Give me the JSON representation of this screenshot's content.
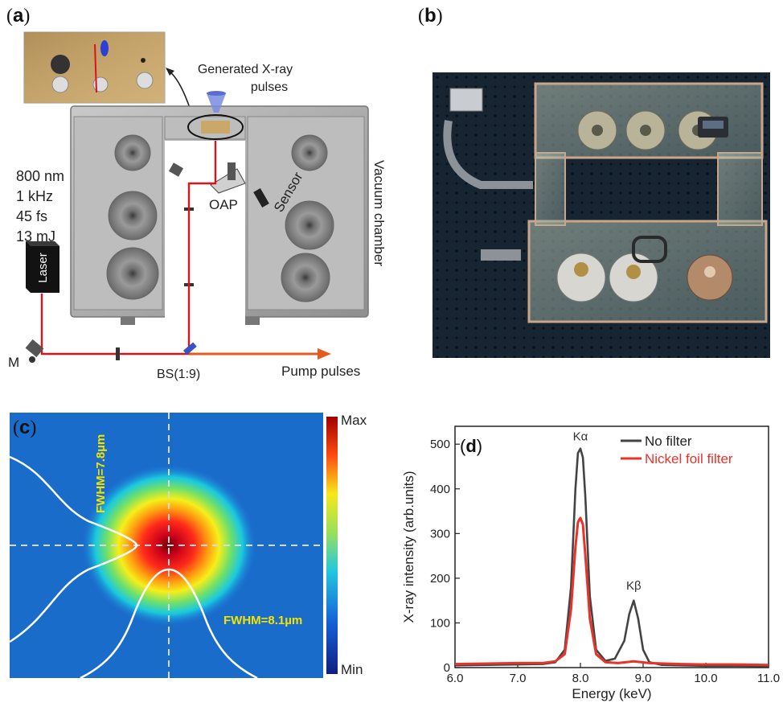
{
  "panels": {
    "a": {
      "label": "a",
      "generated_xray": [
        "Generated X-ray",
        "pulses"
      ],
      "laser_params": [
        "800 nm",
        "1 kHz",
        "45 fs",
        "13 mJ"
      ],
      "laser": "Laser",
      "mirror": "M",
      "beamsplitter": "BS(1:9)",
      "pump_pulses": "Pump pulses",
      "oap": "OAP",
      "sensor": "Sensor",
      "vacuum_chamber": "Vacuum chamber",
      "beam_color": "#d9141b",
      "chamber_color": "#9e9e9e"
    },
    "b": {
      "label": "b"
    },
    "c": {
      "label": "c",
      "colorbar_max": "Max",
      "colorbar_min": "Min",
      "fwhm_vertical": "FWHM=7.8µm",
      "fwhm_horizontal": "FWHM=8.1µm",
      "annotation_color": "#f2e400"
    },
    "d": {
      "label": "d",
      "peak_ka": "Kα",
      "peak_kb": "Kβ"
    }
  },
  "chart_data": {
    "type": "line",
    "xlabel": "Energy (keV)",
    "ylabel": "X-ray intensity (arb.units)",
    "xlim": [
      6.0,
      11.0
    ],
    "ylim": [
      0,
      540
    ],
    "xticks": [
      "6.0",
      "7.0",
      "8.0",
      "9.0",
      "10.0",
      "11.0"
    ],
    "yticks": [
      "0",
      "100",
      "200",
      "300",
      "400",
      "500"
    ],
    "legend_position": "top-right",
    "series": [
      {
        "name": "No filter",
        "color": "#444444",
        "x": [
          6.0,
          6.5,
          7.0,
          7.4,
          7.6,
          7.75,
          7.85,
          7.92,
          7.96,
          8.0,
          8.04,
          8.08,
          8.15,
          8.25,
          8.4,
          8.55,
          8.7,
          8.78,
          8.85,
          8.92,
          9.0,
          9.1,
          9.3,
          9.6,
          10.0,
          10.5,
          11.0
        ],
        "y": [
          5,
          6,
          7,
          8,
          12,
          40,
          180,
          400,
          480,
          490,
          470,
          380,
          160,
          40,
          15,
          20,
          60,
          120,
          150,
          110,
          40,
          12,
          6,
          5,
          4,
          4,
          3
        ]
      },
      {
        "name": "Nickel foil filter",
        "color": "#e8332a",
        "x": [
          6.0,
          6.5,
          7.0,
          7.4,
          7.6,
          7.75,
          7.85,
          7.92,
          7.96,
          8.0,
          8.04,
          8.08,
          8.15,
          8.25,
          8.4,
          8.6,
          8.85,
          9.1,
          9.6,
          10.0,
          10.5,
          11.0
        ],
        "y": [
          8,
          9,
          10,
          10,
          14,
          30,
          130,
          270,
          325,
          335,
          320,
          250,
          110,
          30,
          12,
          10,
          14,
          10,
          8,
          7,
          7,
          6
        ]
      }
    ]
  }
}
